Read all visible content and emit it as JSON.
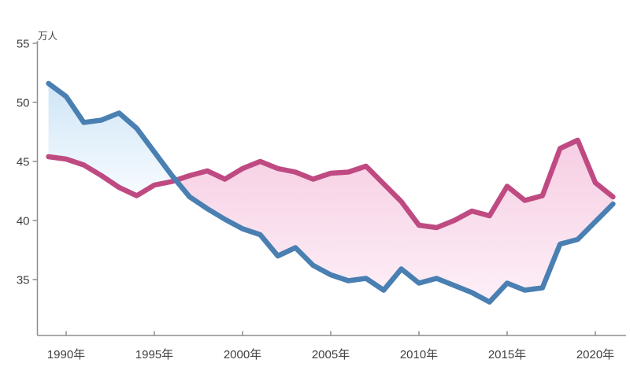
{
  "chart_data": {
    "type": "area",
    "title": "",
    "unit_label": "万人",
    "xlabel": "",
    "ylabel": "万人",
    "x": [
      1989,
      1990,
      1991,
      1992,
      1993,
      1994,
      1995,
      1996,
      1997,
      1998,
      1999,
      2000,
      2001,
      2002,
      2003,
      2004,
      2005,
      2006,
      2007,
      2008,
      2009,
      2010,
      2011,
      2012,
      2013,
      2014,
      2015,
      2016,
      2017,
      2018,
      2019,
      2020,
      2021
    ],
    "x_tick_years": [
      1990,
      1995,
      2000,
      2005,
      2010,
      2015,
      2020
    ],
    "x_tick_labels": [
      "1990年",
      "1995年",
      "2000年",
      "2005年",
      "2010年",
      "2015年",
      "2020年"
    ],
    "y_ticks": [
      35,
      40,
      45,
      50,
      55
    ],
    "y_tick_labels": [
      "35",
      "40",
      "45",
      "50",
      "55"
    ],
    "xlim": [
      1988.4,
      2021.7
    ],
    "ylim": [
      30.3,
      55.2
    ],
    "grid": false,
    "legend_position": "none",
    "series": [
      {
        "name": "blue-series",
        "color": "#4a7fb2",
        "values": [
          51.6,
          50.5,
          48.3,
          48.5,
          49.1,
          47.8,
          45.8,
          43.8,
          42.0,
          41.0,
          40.1,
          39.3,
          38.8,
          37.0,
          37.7,
          36.2,
          35.4,
          34.9,
          35.1,
          34.1,
          35.9,
          34.7,
          35.1,
          34.5,
          33.9,
          33.1,
          34.7,
          34.1,
          34.3,
          38.0,
          38.4,
          39.9,
          41.4
        ]
      },
      {
        "name": "pink-series",
        "color": "#bf4a82",
        "values": [
          45.4,
          45.2,
          44.7,
          43.8,
          42.8,
          42.1,
          43.0,
          43.3,
          43.8,
          44.2,
          43.5,
          44.4,
          45.0,
          44.4,
          44.1,
          43.5,
          44.0,
          44.1,
          44.6,
          43.1,
          41.6,
          39.6,
          39.4,
          40.0,
          40.8,
          40.4,
          42.9,
          41.7,
          42.1,
          46.1,
          46.8,
          43.2,
          42.0
        ]
      }
    ],
    "band_fill": {
      "blue_above_top": "#cde4f6",
      "blue_above_bottom": "#fafdff",
      "pink_above_top": "#f6cde3",
      "pink_above_bottom": "#fdf1f8"
    },
    "axis_color": "#8e8e8e",
    "text_color": "#404040"
  }
}
